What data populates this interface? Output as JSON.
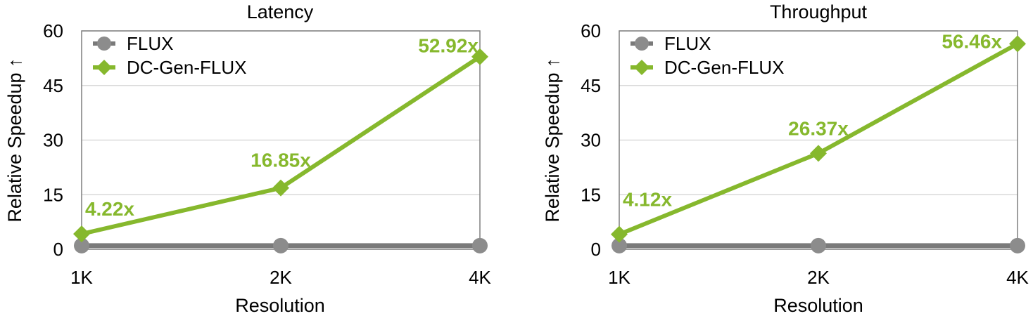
{
  "colors": {
    "flux": "#8c8c8c",
    "flux_line": "#7a7a7a",
    "dcgen": "#86b82d",
    "grid": "#d9d9d9",
    "axis": "#7f7f7f"
  },
  "markers": {
    "flux": "circle",
    "dcgen": "diamond"
  },
  "chart_data": [
    {
      "type": "line",
      "title": "Latency",
      "xlabel": "Resolution",
      "ylabel": "Relative Speedup ↑",
      "categories": [
        "1K",
        "2K",
        "4K"
      ],
      "ylim": [
        0,
        60
      ],
      "yticks": [
        0,
        15,
        30,
        45,
        60
      ],
      "grid": true,
      "legend": "top-left",
      "series": [
        {
          "name": "FLUX",
          "values": [
            1,
            1,
            1
          ],
          "labels": []
        },
        {
          "name": "DC-Gen-FLUX",
          "values": [
            4.22,
            16.85,
            52.92
          ],
          "labels": [
            "4.22x",
            "16.85x",
            "52.92x"
          ]
        }
      ]
    },
    {
      "type": "line",
      "title": "Throughput",
      "xlabel": "Resolution",
      "ylabel": "Relative Speedup ↑",
      "categories": [
        "1K",
        "2K",
        "4K"
      ],
      "ylim": [
        0,
        60
      ],
      "yticks": [
        0,
        15,
        30,
        45,
        60
      ],
      "grid": true,
      "legend": "top-left",
      "series": [
        {
          "name": "FLUX",
          "values": [
            1,
            1,
            1
          ],
          "labels": []
        },
        {
          "name": "DC-Gen-FLUX",
          "values": [
            4.12,
            26.37,
            56.46
          ],
          "labels": [
            "4.12x",
            "26.37x",
            "56.46x"
          ]
        }
      ]
    }
  ]
}
